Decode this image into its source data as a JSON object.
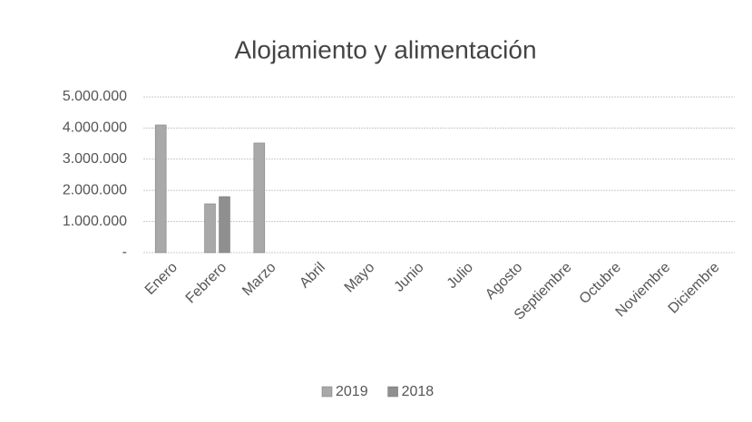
{
  "chart_data": {
    "type": "bar",
    "title": "Alojamiento y alimentación",
    "categories": [
      "Enero",
      "Febrero",
      "Marzo",
      "Abril",
      "Mayo",
      "Junio",
      "Julio",
      "Agosto",
      "Septiembre",
      "Octubre",
      "Noviembre",
      "Diciembre"
    ],
    "series": [
      {
        "name": "2019",
        "color": "#a9a9a9",
        "values": [
          4100000,
          1570000,
          3520000,
          null,
          null,
          null,
          null,
          null,
          null,
          null,
          null,
          null
        ]
      },
      {
        "name": "2018",
        "color": "#8f8f8f",
        "values": [
          null,
          1800000,
          null,
          null,
          null,
          null,
          null,
          null,
          null,
          null,
          null,
          null
        ]
      }
    ],
    "ylim": [
      0,
      5000000
    ],
    "yticks": [
      {
        "value": 0,
        "label": "-"
      },
      {
        "value": 1000000,
        "label": "1.000.000"
      },
      {
        "value": 2000000,
        "label": "2.000.000"
      },
      {
        "value": 3000000,
        "label": "3.000.000"
      },
      {
        "value": 4000000,
        "label": "4.000.000"
      },
      {
        "value": 5000000,
        "label": "5.000.000"
      }
    ],
    "grid": true,
    "legend": "bottom"
  }
}
